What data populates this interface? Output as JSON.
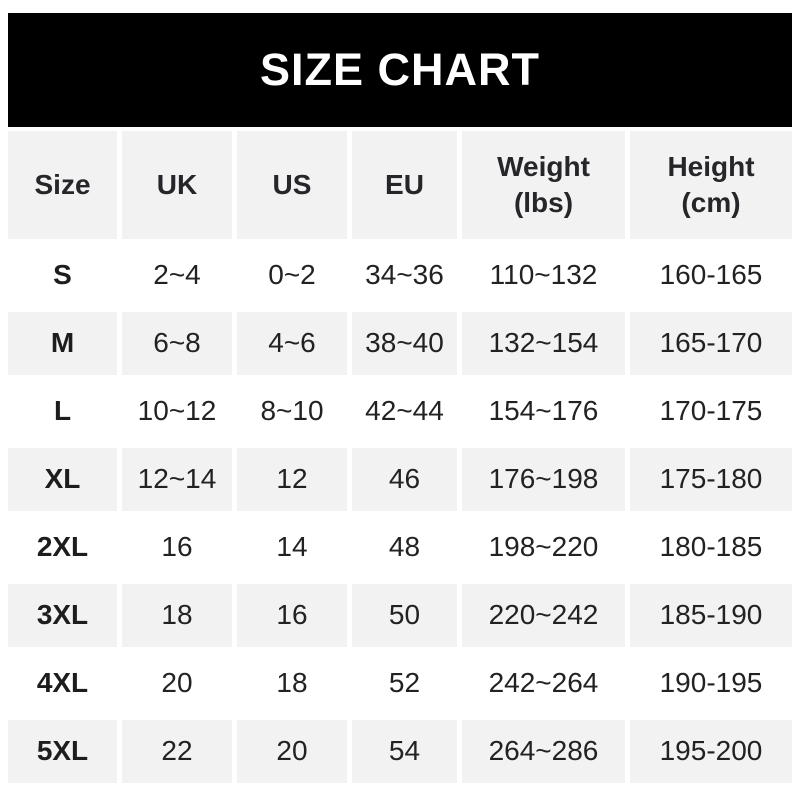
{
  "banner": {
    "title": "SIZE CHART"
  },
  "colors": {
    "banner_bg": "#000000",
    "banner_text": "#ffffff",
    "row_shaded_bg": "#f2f2f2",
    "row_plain_bg": "#ffffff",
    "text": "#222222"
  },
  "chart_data": {
    "type": "table",
    "title": "SIZE CHART",
    "headers": [
      "Size",
      "UK",
      "US",
      "EU",
      "Weight\n(lbs)",
      "Height\n(cm)"
    ],
    "rows": [
      {
        "size": "S",
        "uk": "2~4",
        "us": "0~2",
        "eu": "34~36",
        "weight_lbs": "110~132",
        "height_cm": "160-165"
      },
      {
        "size": "M",
        "uk": "6~8",
        "us": "4~6",
        "eu": "38~40",
        "weight_lbs": "132~154",
        "height_cm": "165-170"
      },
      {
        "size": "L",
        "uk": "10~12",
        "us": "8~10",
        "eu": "42~44",
        "weight_lbs": "154~176",
        "height_cm": "170-175"
      },
      {
        "size": "XL",
        "uk": "12~14",
        "us": "12",
        "eu": "46",
        "weight_lbs": "176~198",
        "height_cm": "175-180"
      },
      {
        "size": "2XL",
        "uk": "16",
        "us": "14",
        "eu": "48",
        "weight_lbs": "198~220",
        "height_cm": "180-185"
      },
      {
        "size": "3XL",
        "uk": "18",
        "us": "16",
        "eu": "50",
        "weight_lbs": "220~242",
        "height_cm": "185-190"
      },
      {
        "size": "4XL",
        "uk": "20",
        "us": "18",
        "eu": "52",
        "weight_lbs": "242~264",
        "height_cm": "190-195"
      },
      {
        "size": "5XL",
        "uk": "22",
        "us": "20",
        "eu": "54",
        "weight_lbs": "264~286",
        "height_cm": "195-200"
      }
    ]
  }
}
